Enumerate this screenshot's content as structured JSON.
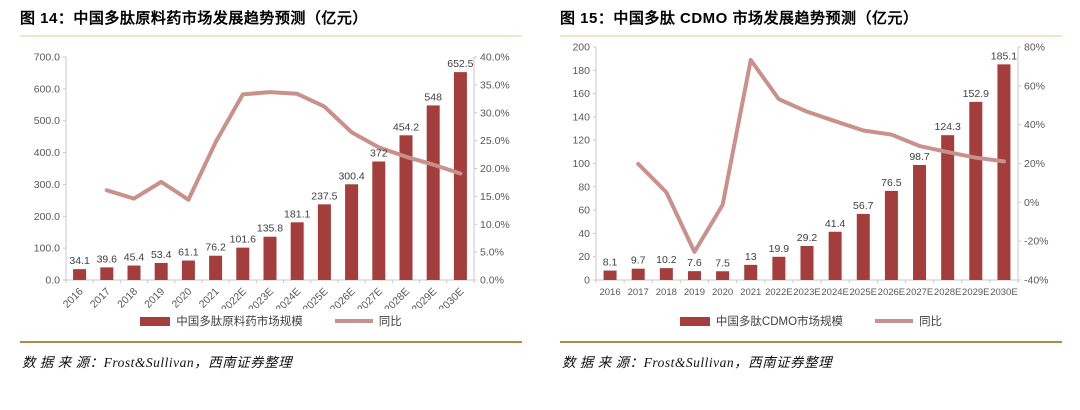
{
  "colors": {
    "bar": "#A33E3C",
    "line": "#C9908C",
    "axis_line": "#C9C9C9",
    "axis_text": "#595959",
    "label_text": "#404040",
    "title_rule": "#F1E5C9",
    "source_rule": "#B28C46"
  },
  "panels": [
    {
      "title": "图 14：中国多肽原料药市场发展趋势预测（亿元）",
      "legend": {
        "bar_label": "中国多肽原料药市场规模",
        "line_label": "同比"
      },
      "source": "数 据 来 源：Frost&Sullivan，西南证券整理"
    },
    {
      "title": "图 15：中国多肽 CDMO 市场发展趋势预测（亿元）",
      "legend": {
        "bar_label": "中国多肽CDMO市场规模",
        "line_label": "同比"
      },
      "source": "数 据 来 源：Frost&Sullivan，西南证券整理"
    }
  ],
  "chart_data": [
    {
      "type": "bar",
      "subtype": "bar+line-combo",
      "title": "图 14：中国多肽原料药市场发展趋势预测（亿元）",
      "categories": [
        "2016",
        "2017",
        "2018",
        "2019",
        "2020",
        "2021",
        "2022E",
        "2023E",
        "2024E",
        "2025E",
        "2026E",
        "2027E",
        "2028E",
        "2029E",
        "2030E"
      ],
      "series": [
        {
          "name": "中国多肽原料药市场规模",
          "type": "bar",
          "axis": "left",
          "values": [
            34.1,
            39.6,
            45.4,
            53.4,
            61.1,
            76.2,
            101.6,
            135.8,
            181.1,
            237.5,
            300.4,
            372,
            454.2,
            548,
            652.5
          ]
        },
        {
          "name": "同比",
          "type": "line",
          "axis": "right",
          "values": [
            null,
            16.1,
            14.6,
            17.6,
            14.4,
            24.7,
            33.3,
            33.7,
            33.4,
            31.1,
            26.5,
            23.8,
            22.1,
            20.7,
            19.1
          ]
        }
      ],
      "bar_value_labels": [
        "34.1",
        "39.6",
        "45.4",
        "53.4",
        "61.1",
        "76.2",
        "101.6",
        "135.8",
        "181.1",
        "237.5",
        "300.4",
        "372",
        "454.2",
        "548",
        "652.5"
      ],
      "left_axis": {
        "min": 0,
        "max": 700,
        "ticks": [
          "0.0",
          "100.0",
          "200.0",
          "300.0",
          "400.0",
          "500.0",
          "600.0",
          "700.0"
        ]
      },
      "right_axis": {
        "min": 0,
        "max": 40,
        "ticks": [
          "0.0%",
          "5.0%",
          "10.0%",
          "15.0%",
          "20.0%",
          "25.0%",
          "30.0%",
          "35.0%",
          "40.0%"
        ]
      },
      "xlabel": "",
      "ylabel": "",
      "grid": false,
      "legend_position": "bottom",
      "x_tick_rotation": -45
    },
    {
      "type": "bar",
      "subtype": "bar+line-combo",
      "title": "图 15：中国多肽 CDMO 市场发展趋势预测（亿元）",
      "categories": [
        "2016",
        "2017",
        "2018",
        "2019",
        "2020",
        "2021",
        "2022E",
        "2023E",
        "2024E",
        "2025E",
        "2026E",
        "2027E",
        "2028E",
        "2029E",
        "2030E"
      ],
      "series": [
        {
          "name": "中国多肽CDMO市场规模",
          "type": "bar",
          "axis": "left",
          "values": [
            8.1,
            9.7,
            10.2,
            7.6,
            7.5,
            13,
            19.9,
            29.2,
            41.4,
            56.7,
            76.5,
            98.7,
            124.3,
            152.9,
            185.1
          ]
        },
        {
          "name": "同比",
          "type": "line",
          "axis": "right",
          "values": [
            null,
            19.8,
            5.2,
            -25.5,
            -1.3,
            73.3,
            53.1,
            46.7,
            41.8,
            37.0,
            34.9,
            29.0,
            25.9,
            23.0,
            21.1
          ]
        }
      ],
      "bar_value_labels": [
        "8.1",
        "9.7",
        "10.2",
        "7.6",
        "7.5",
        "13",
        "19.9",
        "29.2",
        "41.4",
        "56.7",
        "76.5",
        "98.7",
        "124.3",
        "152.9",
        "185.1"
      ],
      "left_axis": {
        "min": 0,
        "max": 200,
        "ticks": [
          "0",
          "20",
          "40",
          "60",
          "80",
          "100",
          "120",
          "140",
          "160",
          "180",
          "200"
        ]
      },
      "right_axis": {
        "min": -40,
        "max": 80,
        "ticks": [
          "-40%",
          "-20%",
          "0%",
          "20%",
          "40%",
          "60%",
          "80%"
        ]
      },
      "xlabel": "",
      "ylabel": "",
      "grid": false,
      "legend_position": "bottom",
      "x_tick_rotation": 0
    }
  ]
}
